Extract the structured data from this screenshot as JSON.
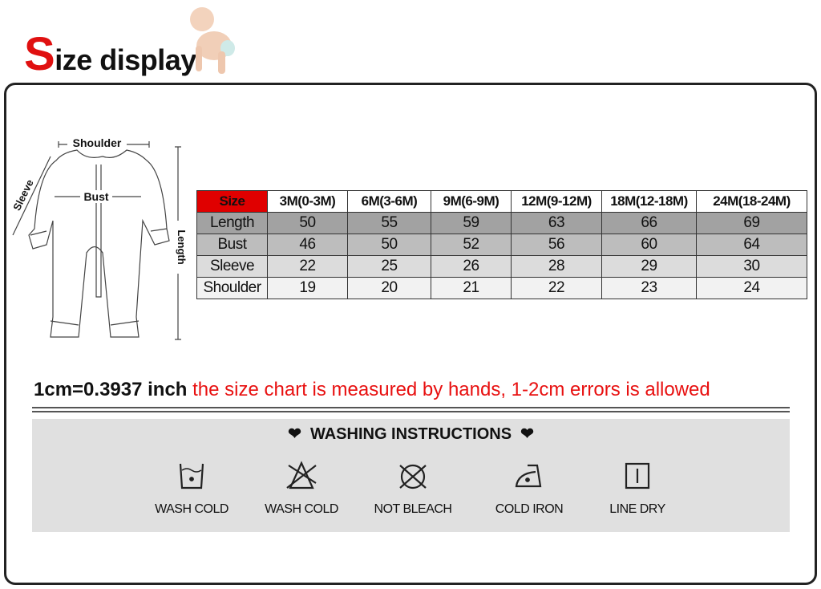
{
  "header": {
    "title_initial": "S",
    "title_rest": "ize display"
  },
  "diagram": {
    "labels": {
      "shoulder": "Shoulder",
      "bust": "Bust",
      "sleeve": "Sleeve",
      "length": "Length"
    }
  },
  "size_table": {
    "corner": "Size",
    "columns": [
      "3M(0-3M)",
      "6M(3-6M)",
      "9M(6-9M)",
      "12M(9-12M)",
      "18M(12-18M)",
      "24M(18-24M)"
    ],
    "rows": [
      {
        "label": "Length",
        "values": [
          "50",
          "55",
          "59",
          "63",
          "66",
          "69"
        ]
      },
      {
        "label": "Bust",
        "values": [
          "46",
          "50",
          "52",
          "56",
          "60",
          "64"
        ]
      },
      {
        "label": "Sleeve",
        "values": [
          "22",
          "25",
          "26",
          "28",
          "29",
          "30"
        ]
      },
      {
        "label": "Shoulder",
        "values": [
          "19",
          "20",
          "21",
          "22",
          "23",
          "24"
        ]
      }
    ],
    "accent": "#e00000"
  },
  "note": {
    "conversion": "1cm=0.3937 inch",
    "disclaimer": "the size chart is measured by hands, 1-2cm errors is allowed"
  },
  "washing": {
    "title": "WASHING INSTRUCTIONS",
    "items": [
      {
        "icon": "wash-cold-icon",
        "label": "WASH COLD"
      },
      {
        "icon": "no-bleach-triangle-icon",
        "label": "WASH COLD"
      },
      {
        "icon": "no-dry-clean-icon",
        "label": "NOT BLEACH"
      },
      {
        "icon": "iron-icon",
        "label": "COLD IRON"
      },
      {
        "icon": "line-dry-icon",
        "label": "LINE DRY"
      }
    ]
  }
}
